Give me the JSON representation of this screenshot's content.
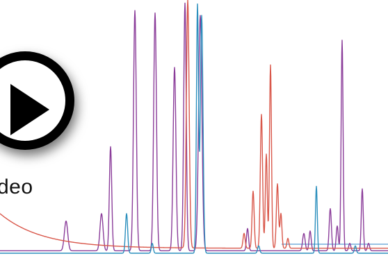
{
  "video": {
    "label": "deo"
  },
  "icons": {
    "play": "play-icon"
  },
  "colors": {
    "purple": "#8b3d9a",
    "red": "#d9574a",
    "blue": "#2b8fbd",
    "baseline_blue": "#2f86c8",
    "play_fill": "#000000"
  },
  "chart_data": {
    "type": "line",
    "title": "",
    "xlabel": "",
    "ylabel": "",
    "xlim": [
      0,
      558
    ],
    "ylim": [
      0,
      100
    ],
    "series": [
      {
        "color": "purple",
        "baseline": 1,
        "peaks": [
          {
            "x": 95,
            "h": 12,
            "w": 2.4
          },
          {
            "x": 146,
            "h": 15,
            "w": 2.2
          },
          {
            "x": 159,
            "h": 42,
            "w": 1.7
          },
          {
            "x": 194,
            "h": 97,
            "w": 2.0
          },
          {
            "x": 223,
            "h": 96,
            "w": 2.0
          },
          {
            "x": 251,
            "h": 74,
            "w": 2.0
          },
          {
            "x": 266,
            "h": 100,
            "w": 1.8
          },
          {
            "x": 288,
            "h": 95,
            "w": 2.4
          },
          {
            "x": 356,
            "h": 9,
            "w": 1.5
          },
          {
            "x": 437,
            "h": 7,
            "w": 1.8
          },
          {
            "x": 446,
            "h": 8,
            "w": 1.5
          },
          {
            "x": 475,
            "h": 17,
            "w": 1.6
          },
          {
            "x": 485,
            "h": 10,
            "w": 1.5
          },
          {
            "x": 492,
            "h": 85,
            "w": 1.4
          },
          {
            "x": 503,
            "h": 3,
            "w": 1.5
          },
          {
            "x": 521,
            "h": 25,
            "w": 1.4
          },
          {
            "x": 530,
            "h": 3,
            "w": 1.5
          }
        ]
      },
      {
        "color": "red",
        "baseline": 2,
        "decay": 14,
        "peaks": [
          {
            "x": 270,
            "h": 100,
            "w": 2.0
          },
          {
            "x": 351,
            "h": 6,
            "w": 1.5
          },
          {
            "x": 364,
            "h": 23,
            "w": 1.5
          },
          {
            "x": 376,
            "h": 54,
            "w": 1.6
          },
          {
            "x": 383,
            "h": 38,
            "w": 1.4
          },
          {
            "x": 389,
            "h": 74,
            "w": 1.4
          },
          {
            "x": 399,
            "h": 26,
            "w": 1.5
          },
          {
            "x": 404,
            "h": 14,
            "w": 1.4
          },
          {
            "x": 414,
            "h": 4,
            "w": 1.4
          }
        ]
      },
      {
        "color": "blue",
        "baseline": 0,
        "peaks": [
          {
            "x": 182,
            "h": 16,
            "w": 1.6
          },
          {
            "x": 219,
            "h": 4,
            "w": 1.4
          },
          {
            "x": 284,
            "h": 100,
            "w": 1.5
          },
          {
            "x": 290,
            "h": 96,
            "w": 1.9
          },
          {
            "x": 372,
            "h": 3,
            "w": 1.5
          },
          {
            "x": 455,
            "h": 27,
            "w": 1.3
          },
          {
            "x": 511,
            "h": 3,
            "w": 1.4
          }
        ]
      }
    ]
  }
}
